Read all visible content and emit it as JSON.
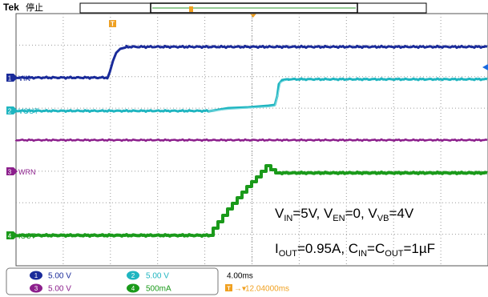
{
  "header": {
    "brand": "Tek",
    "run_state": "停止"
  },
  "channels": {
    "ch1": {
      "label": "VIN",
      "number": "1",
      "color": "#1a2b9a"
    },
    "ch2": {
      "label": "VOUT",
      "number": "2",
      "color": "#1fb5c0"
    },
    "ch3": {
      "label": "WRN",
      "number": "3",
      "color": "#8c1f8c"
    },
    "ch4": {
      "label": "IOUT",
      "number": "4",
      "color": "#1a9a1a"
    }
  },
  "annotation": {
    "line1": [
      {
        "t": "V"
      },
      {
        "t": "IN",
        "sub": true
      },
      {
        "t": "=5V, V"
      },
      {
        "t": "EN",
        "sub": true
      },
      {
        "t": "=0, V"
      },
      {
        "t": "VB",
        "sub": true
      },
      {
        "t": "=4V"
      }
    ],
    "line2": [
      {
        "t": "I"
      },
      {
        "t": "OUT",
        "sub": true
      },
      {
        "t": "=0.95A, C"
      },
      {
        "t": "IN",
        "sub": true
      },
      {
        "t": "=C"
      },
      {
        "t": "OUT",
        "sub": true
      },
      {
        "t": "=1µF"
      }
    ]
  },
  "settings": {
    "ch1_scale": "5.00 V",
    "ch2_scale": "5.00 V",
    "ch3_scale": "5.00 V",
    "ch4_scale": "500mA",
    "timebase": "4.00ms",
    "trigger_position": "12.04000ms"
  },
  "colors": {
    "grid": "#9a9a9a",
    "border": "#555555",
    "accent_orange": "#f0a020",
    "ch3_badge": "#8c1f8c"
  }
}
